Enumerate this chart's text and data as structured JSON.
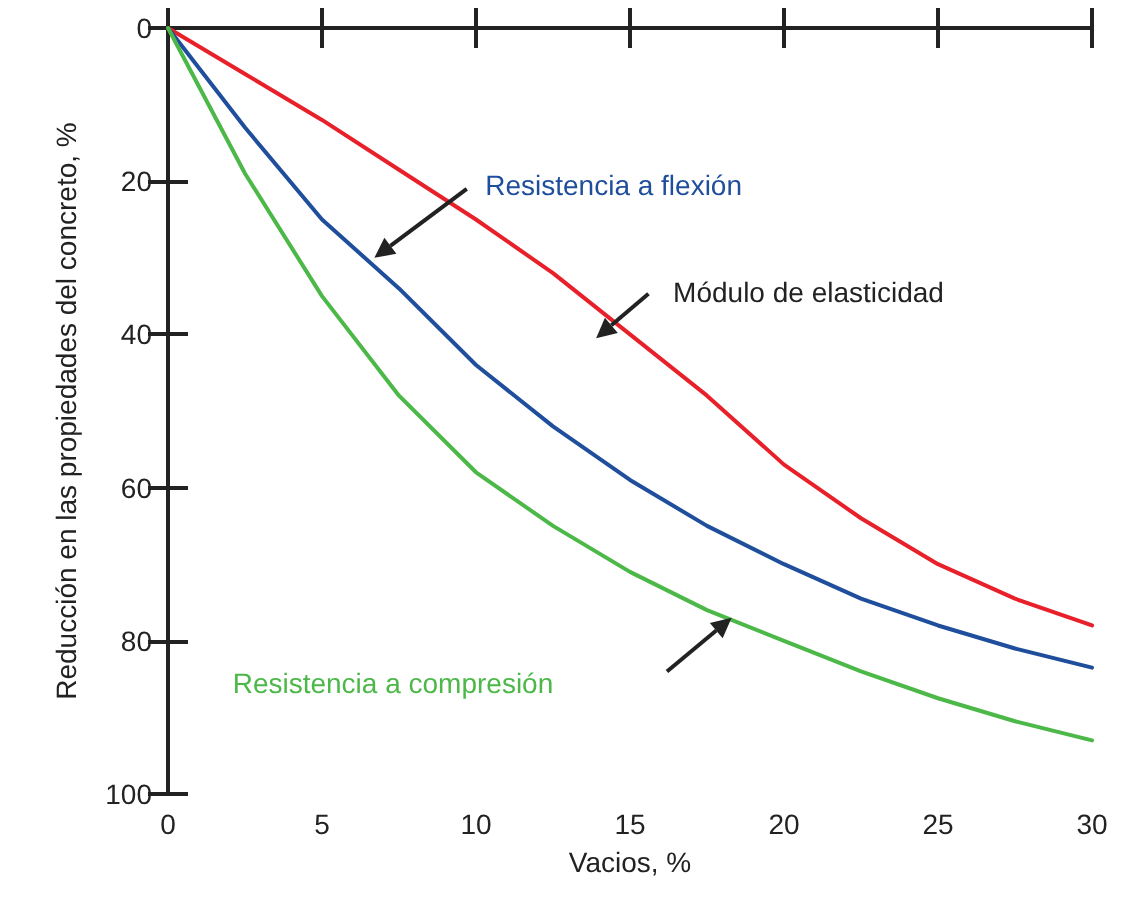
{
  "chart_data": {
    "type": "line",
    "xlabel": "Vacios, %",
    "ylabel": "Reducción en las propiedades del concreto, %",
    "x": [
      0,
      2.5,
      5,
      7.5,
      10,
      12.5,
      15,
      17.5,
      20,
      22.5,
      25,
      27.5,
      30
    ],
    "series": [
      {
        "name": "Módulo de elasticidad",
        "color": "#e8202a",
        "values": [
          0,
          6,
          12,
          18.5,
          25,
          32,
          40,
          48,
          57,
          64,
          70,
          74.5,
          78
        ]
      },
      {
        "name": "Resistencia a flexión",
        "color": "#1f4e9c",
        "values": [
          0,
          13,
          25,
          34,
          44,
          52,
          59,
          65,
          70,
          74.5,
          78,
          81,
          83.5
        ]
      },
      {
        "name": "Resistencia a compresión",
        "color": "#4cb848",
        "values": [
          0,
          19,
          35,
          48,
          58,
          65,
          71,
          76,
          80,
          84,
          87.5,
          90.5,
          93
        ]
      }
    ],
    "xlim": [
      0,
      30
    ],
    "xticks": [
      0,
      5,
      10,
      15,
      20,
      25,
      30
    ],
    "ylim": [
      100,
      0
    ],
    "yticks": [
      0,
      20,
      40,
      60,
      80,
      100
    ],
    "grid": false,
    "legend": false,
    "marker": "none",
    "line_style": "solid"
  }
}
